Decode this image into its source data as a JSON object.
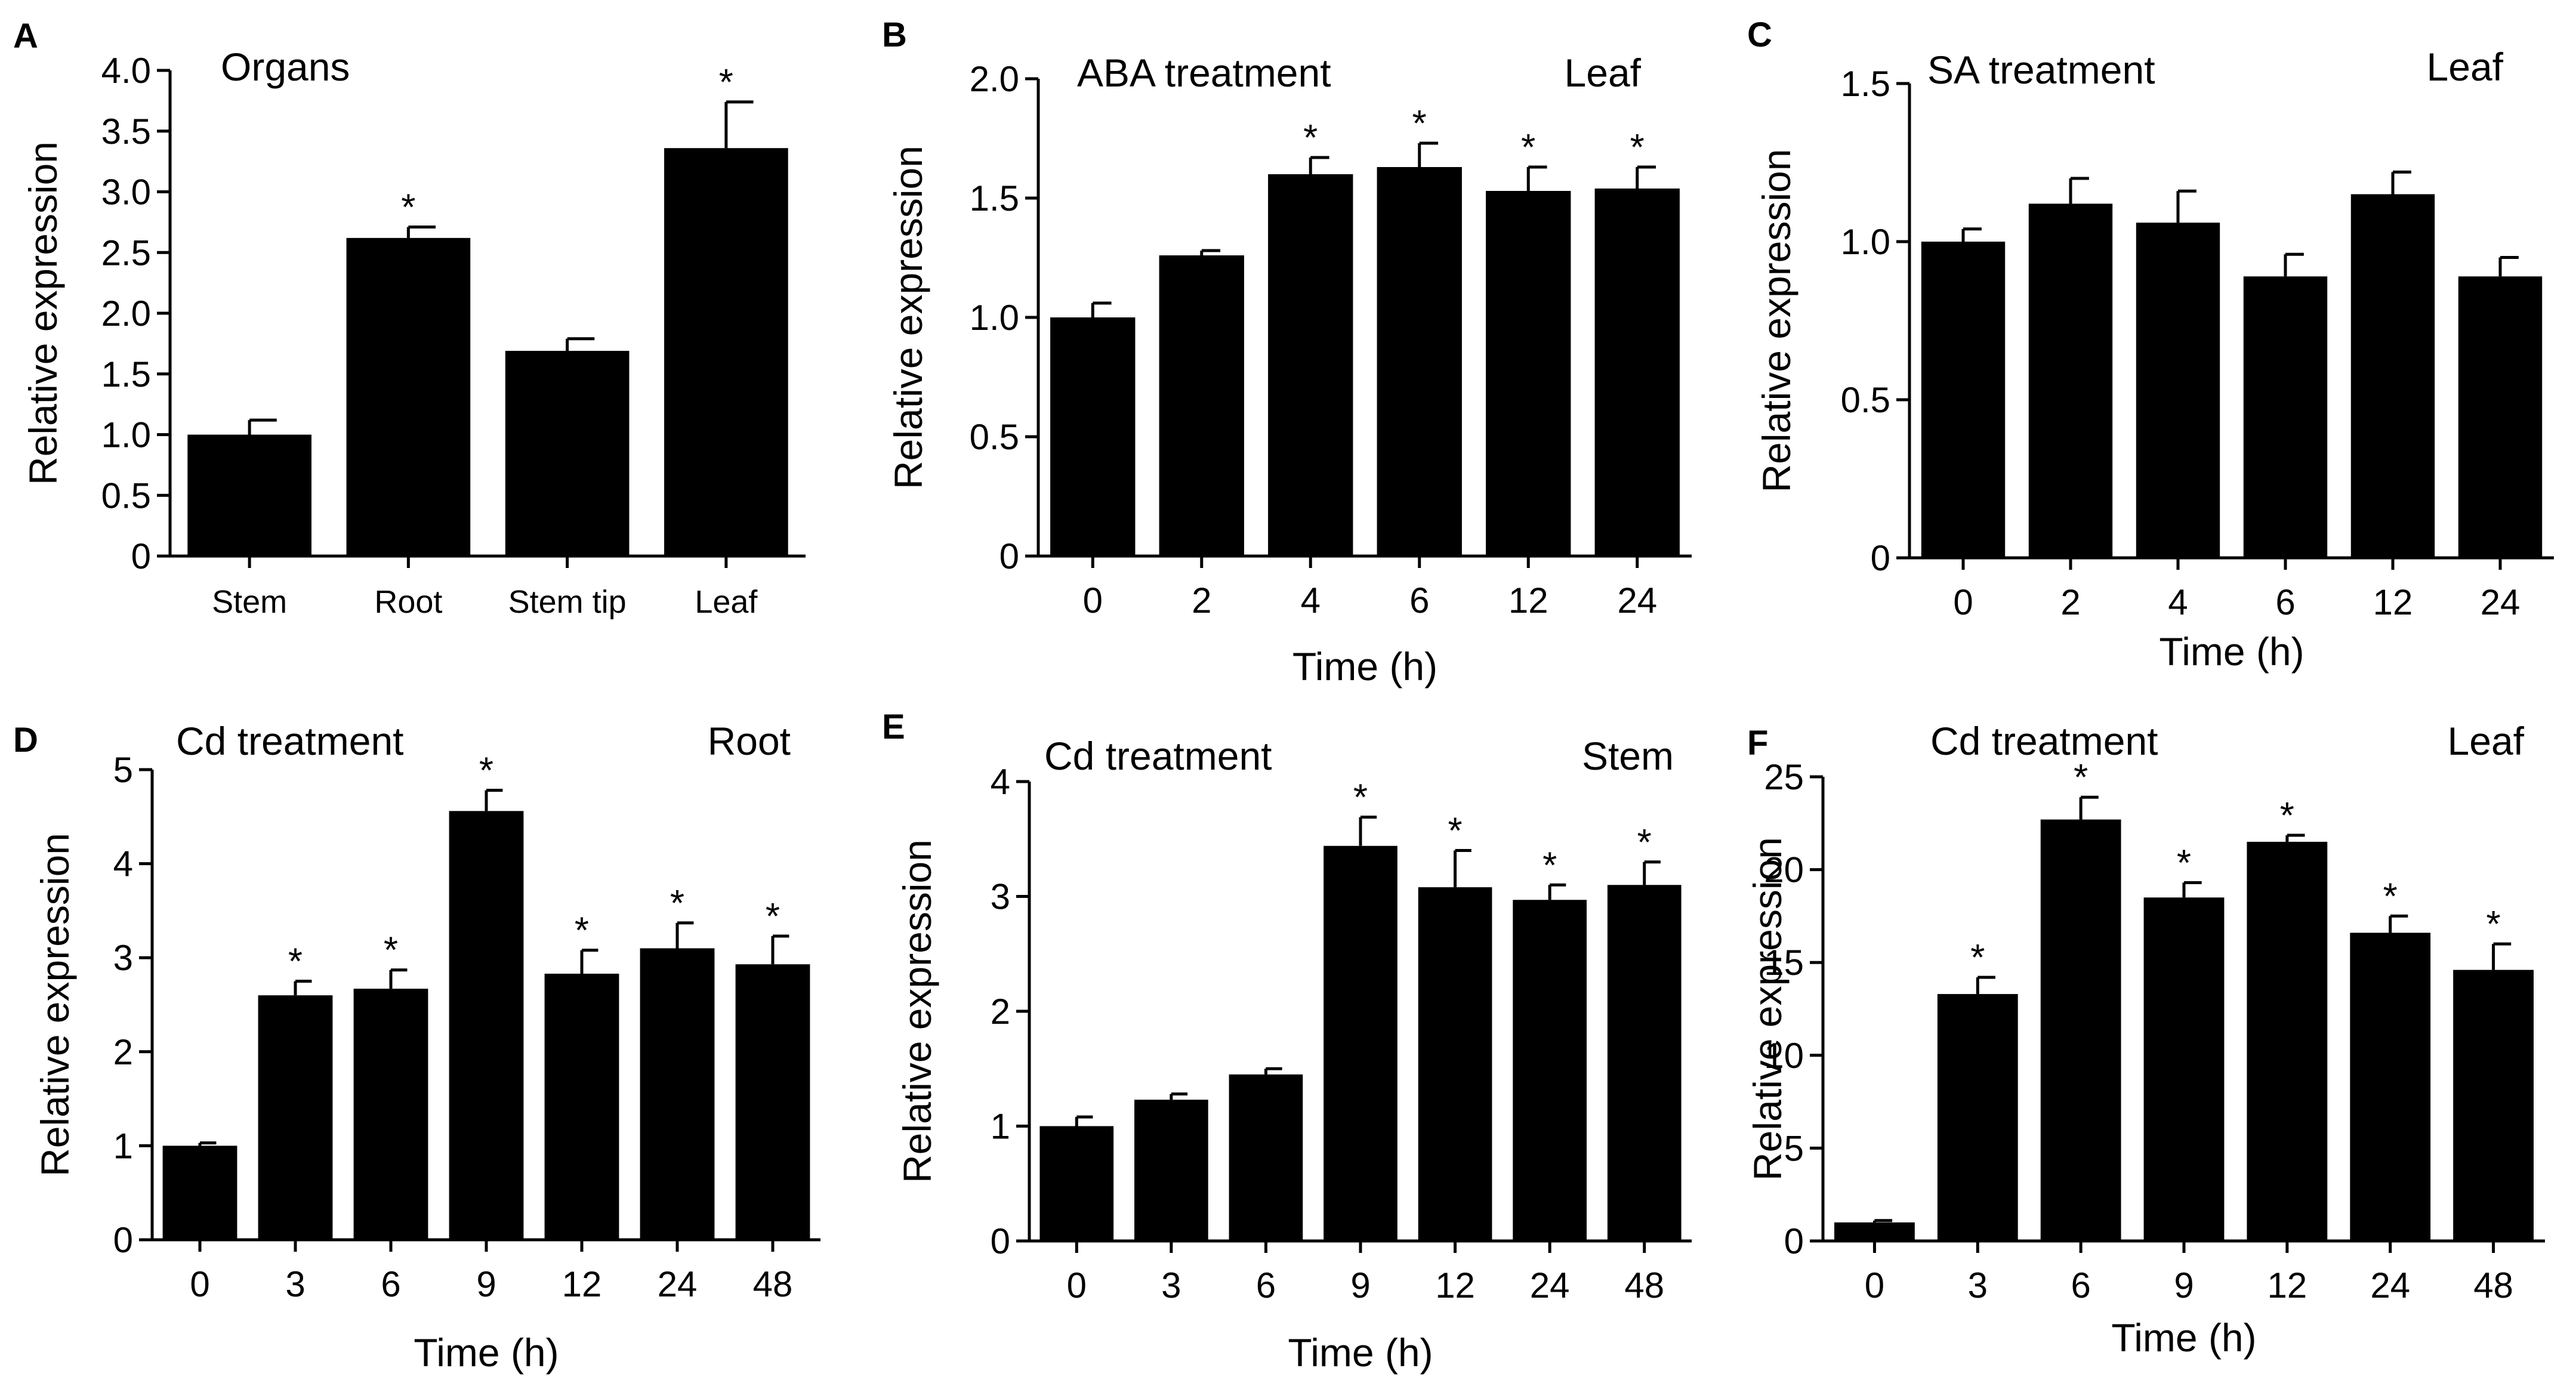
{
  "figure": {
    "background": "#ffffff",
    "bar_color": "#000000"
  },
  "chart_data": [
    {
      "panel": "A",
      "type": "bar",
      "title": "Organs",
      "subtitle": "",
      "xlabel": "",
      "ylabel": "Relative expression",
      "ylim": [
        0,
        4.0
      ],
      "yticks": [
        "0",
        "0.5",
        "1.0",
        "1.5",
        "2.0",
        "2.5",
        "3.0",
        "3.5",
        "4.0"
      ],
      "categories": [
        "Stem",
        "Root",
        "Stem tip",
        "Leaf"
      ],
      "values": [
        1.0,
        2.62,
        1.69,
        3.36
      ],
      "errors": [
        0.12,
        0.09,
        0.1,
        0.38
      ],
      "significance": [
        "",
        "*",
        "",
        "*"
      ]
    },
    {
      "panel": "B",
      "type": "bar",
      "title": "ABA treatment",
      "subtitle": "Leaf",
      "xlabel": "Time (h)",
      "ylabel": "Relative expression",
      "ylim": [
        0,
        2.0
      ],
      "yticks": [
        "0",
        "0.5",
        "1.0",
        "1.5",
        "2.0"
      ],
      "categories": [
        "0",
        "2",
        "4",
        "6",
        "12",
        "24"
      ],
      "values": [
        1.0,
        1.26,
        1.6,
        1.63,
        1.53,
        1.54
      ],
      "errors": [
        0.06,
        0.02,
        0.07,
        0.1,
        0.1,
        0.09
      ],
      "significance": [
        "",
        "",
        "*",
        "*",
        "*",
        "*"
      ]
    },
    {
      "panel": "C",
      "type": "bar",
      "title": "SA treatment",
      "subtitle": "Leaf",
      "xlabel": "Time (h)",
      "ylabel": "Relative expression",
      "ylim": [
        0,
        1.5
      ],
      "yticks": [
        "0",
        "0.5",
        "1.0",
        "1.5"
      ],
      "categories": [
        "0",
        "2",
        "4",
        "6",
        "12",
        "24"
      ],
      "values": [
        1.0,
        1.12,
        1.06,
        0.89,
        1.15,
        0.89
      ],
      "errors": [
        0.04,
        0.08,
        0.1,
        0.07,
        0.07,
        0.06
      ],
      "significance": [
        "",
        "",
        "",
        "",
        "",
        ""
      ]
    },
    {
      "panel": "D",
      "type": "bar",
      "title": "Cd treatment",
      "subtitle": "Root",
      "xlabel": "Time (h)",
      "ylabel": "Relative expression",
      "ylim": [
        0,
        5
      ],
      "yticks": [
        "0",
        "1",
        "2",
        "3",
        "4",
        "5"
      ],
      "categories": [
        "0",
        "3",
        "6",
        "9",
        "12",
        "24",
        "48"
      ],
      "values": [
        1.0,
        2.6,
        2.67,
        4.56,
        2.83,
        3.1,
        2.93
      ],
      "errors": [
        0.03,
        0.15,
        0.2,
        0.22,
        0.25,
        0.27,
        0.3
      ],
      "significance": [
        "",
        "*",
        "*",
        "*",
        "*",
        "*",
        "*"
      ]
    },
    {
      "panel": "E",
      "type": "bar",
      "title": "Cd treatment",
      "subtitle": "Stem",
      "xlabel": "Time (h)",
      "ylabel": "Relative expression",
      "ylim": [
        0,
        4
      ],
      "yticks": [
        "0",
        "1",
        "2",
        "3",
        "4"
      ],
      "categories": [
        "0",
        "3",
        "6",
        "9",
        "12",
        "24",
        "48"
      ],
      "values": [
        1.0,
        1.23,
        1.45,
        3.44,
        3.08,
        2.97,
        3.1
      ],
      "errors": [
        0.08,
        0.05,
        0.05,
        0.25,
        0.32,
        0.13,
        0.2
      ],
      "significance": [
        "",
        "",
        "",
        "*",
        "*",
        "*",
        "*"
      ]
    },
    {
      "panel": "F",
      "type": "bar",
      "title": "Cd treatment",
      "subtitle": "Leaf",
      "xlabel": "Time (h)",
      "ylabel": "Relative expression",
      "ylim": [
        0,
        25
      ],
      "yticks": [
        "0",
        "5",
        "10",
        "15",
        "20",
        "25"
      ],
      "categories": [
        "0",
        "3",
        "6",
        "9",
        "12",
        "24",
        "48"
      ],
      "values": [
        1.0,
        13.3,
        22.7,
        18.5,
        21.5,
        16.6,
        14.6
      ],
      "errors": [
        0.1,
        0.9,
        1.2,
        0.8,
        0.35,
        0.9,
        1.4
      ],
      "significance": [
        "",
        "*",
        "*",
        "*",
        "*",
        "*",
        "*"
      ]
    }
  ]
}
